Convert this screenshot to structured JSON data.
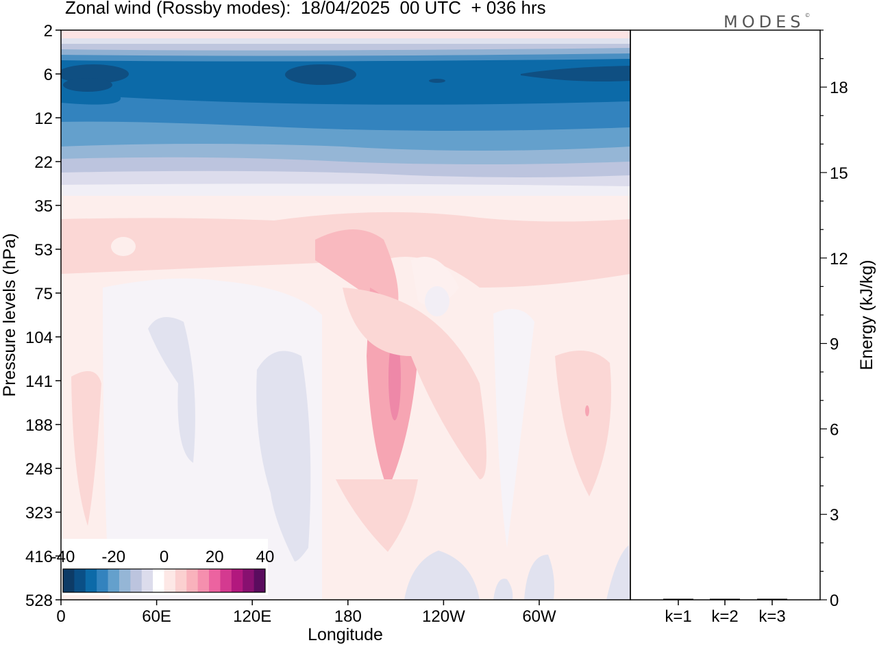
{
  "title": "Zonal wind (Rossby modes):  18/04/2025  00 UTC  + 036 hrs",
  "logo": "MODES",
  "logo_mark": "©",
  "chart_data": [
    {
      "type": "heatmap",
      "title": "Zonal wind (Rossby modes):  18/04/2025  00 UTC  + 036 hrs",
      "xlabel": "Longitude",
      "ylabel": "Pressure levels (hPa)",
      "x_ticks": [
        "0",
        "60E",
        "120E",
        "180",
        "120W",
        "60W"
      ],
      "y_ticks": [
        "2",
        "6",
        "12",
        "22",
        "35",
        "53",
        "75",
        "104",
        "141",
        "188",
        "248",
        "323",
        "416",
        "528"
      ],
      "y_inverted": true,
      "colorbar": {
        "ticks": [
          "-40",
          "-20",
          "0",
          "20",
          "40"
        ],
        "range": [
          -40,
          40
        ],
        "colors": [
          "#0d3b66",
          "#0a4f86",
          "#0c6aa8",
          "#3383be",
          "#64a0cc",
          "#95b6d6",
          "#bcc4de",
          "#dcdcec",
          "#ffffff",
          "#fde8e6",
          "#fbd0d0",
          "#f9b2bc",
          "#f58fae",
          "#ec63a0",
          "#d43a90",
          "#b2187e",
          "#881070",
          "#5a0c5e"
        ]
      },
      "regions": [
        {
          "level_range": [
            "2",
            "4"
          ],
          "approx_value": 2
        },
        {
          "level_range": [
            "4",
            "6"
          ],
          "approx_value": -20
        },
        {
          "level_range": [
            "6",
            "10"
          ],
          "approx_value": -35
        },
        {
          "level_range": [
            "10",
            "22"
          ],
          "approx_value": -25
        },
        {
          "level_range": [
            "22",
            "35"
          ],
          "approx_value": -5
        },
        {
          "level_range": [
            "35",
            "75"
          ],
          "approx_value": 8
        },
        {
          "level_range": [
            "75",
            "528"
          ],
          "approx_value": 2
        }
      ]
    },
    {
      "type": "bar",
      "categories": [
        "k=1",
        "k=2",
        "k=3"
      ],
      "values": [
        0.02,
        0.02,
        0.01
      ],
      "ylabel": "Energy (kJ/kg)",
      "ylim": [
        0,
        20
      ],
      "y_ticks": [
        0,
        3,
        6,
        9,
        12,
        15,
        18
      ]
    }
  ]
}
